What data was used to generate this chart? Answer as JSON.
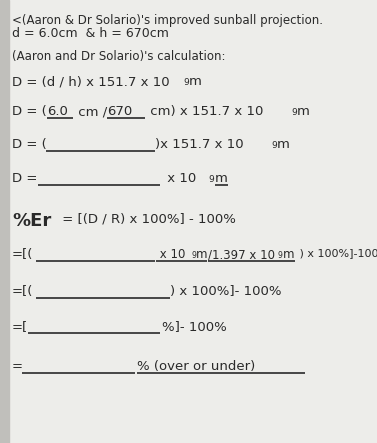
{
  "bg_color": "#ededea",
  "text_color": "#2a2a2a",
  "title1": "<(Aaron & Dr Solario)'s improved sunball projection.",
  "title2": "d = 6.0cm  & h = 670cm",
  "subtitle": "(Aaron and Dr Solario)'s calculation:",
  "left_bar_color": "#b0b0b0",
  "left_bar_width": 0.025
}
